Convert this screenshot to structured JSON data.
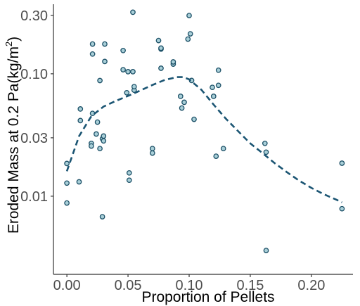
{
  "chart_data": {
    "type": "scatter",
    "title": "",
    "xlabel": "Proportion of Pellets",
    "ylabel": {
      "prefix": "Eroded Mass at 0.2 Pa(kg/m",
      "superscript": "2",
      "suffix": ")"
    },
    "x_scale": "linear",
    "y_scale": "log10",
    "xlim": [
      -0.011,
      0.234
    ],
    "ylim": [
      0.0023,
      0.37
    ],
    "x_ticks": [
      0.0,
      0.05,
      0.1,
      0.15,
      0.2
    ],
    "x_tick_labels": [
      "0.00",
      "0.05",
      "0.10",
      "0.15",
      "0.20"
    ],
    "y_ticks": [
      0.01,
      0.03,
      0.1,
      0.3
    ],
    "y_tick_labels": [
      "0.01",
      "0.03",
      "0.10",
      "0.30"
    ],
    "grid": false,
    "colors": {
      "point_stroke": "#1b4f66",
      "point_fill": "#a9cfd8",
      "trend": "#1b5573",
      "axis": "#333333"
    },
    "points": [
      [
        0.0,
        0.0185
      ],
      [
        0.0,
        0.0128
      ],
      [
        0.0,
        0.0088
      ],
      [
        0.01,
        0.0131
      ],
      [
        0.011,
        0.0415
      ],
      [
        0.011,
        0.0516
      ],
      [
        0.02,
        0.027
      ],
      [
        0.02,
        0.0257
      ],
      [
        0.021,
        0.0475
      ],
      [
        0.021,
        0.145
      ],
      [
        0.021,
        0.175
      ],
      [
        0.024,
        0.0322
      ],
      [
        0.025,
        0.0403
      ],
      [
        0.027,
        0.0245
      ],
      [
        0.027,
        0.088
      ],
      [
        0.029,
        0.0068
      ],
      [
        0.029,
        0.0295
      ],
      [
        0.03,
        0.0283
      ],
      [
        0.03,
        0.031
      ],
      [
        0.031,
        0.126
      ],
      [
        0.031,
        0.175
      ],
      [
        0.046,
        0.108
      ],
      [
        0.046,
        0.155
      ],
      [
        0.049,
        0.07
      ],
      [
        0.05,
        0.104
      ],
      [
        0.051,
        0.0135
      ],
      [
        0.051,
        0.0155
      ],
      [
        0.054,
        0.318
      ],
      [
        0.054,
        0.104
      ],
      [
        0.055,
        0.0735
      ],
      [
        0.055,
        0.0785
      ],
      [
        0.07,
        0.0225
      ],
      [
        0.07,
        0.0245
      ],
      [
        0.075,
        0.187
      ],
      [
        0.077,
        0.111
      ],
      [
        0.077,
        0.159
      ],
      [
        0.077,
        0.162
      ],
      [
        0.087,
        0.12
      ],
      [
        0.087,
        0.125
      ],
      [
        0.093,
        0.0655
      ],
      [
        0.094,
        0.0525
      ],
      [
        0.096,
        0.0585
      ],
      [
        0.099,
        0.192
      ],
      [
        0.1,
        0.299
      ],
      [
        0.101,
        0.212
      ],
      [
        0.102,
        0.0882
      ],
      [
        0.104,
        0.0425
      ],
      [
        0.119,
        0.0775
      ],
      [
        0.12,
        0.0655
      ],
      [
        0.122,
        0.0212
      ],
      [
        0.124,
        0.0805
      ],
      [
        0.124,
        0.107
      ],
      [
        0.128,
        0.0245
      ],
      [
        0.162,
        0.027
      ],
      [
        0.163,
        0.0229
      ],
      [
        0.163,
        0.0036
      ],
      [
        0.225,
        0.0186
      ],
      [
        0.225,
        0.0079
      ]
    ],
    "trend_line": {
      "style": "dashed",
      "x": [
        0.0,
        0.01,
        0.02,
        0.03,
        0.04,
        0.05,
        0.06,
        0.07,
        0.08,
        0.09,
        0.095,
        0.1,
        0.11,
        0.12,
        0.13,
        0.14,
        0.15,
        0.16,
        0.17,
        0.18,
        0.19,
        0.2,
        0.21,
        0.22,
        0.225
      ],
      "y": [
        0.016,
        0.031,
        0.045,
        0.054,
        0.06,
        0.066,
        0.073,
        0.081,
        0.089,
        0.094,
        0.094,
        0.09,
        0.074,
        0.056,
        0.043,
        0.034,
        0.027,
        0.0225,
        0.0186,
        0.0157,
        0.0134,
        0.0117,
        0.0104,
        0.0094,
        0.0089
      ]
    }
  }
}
